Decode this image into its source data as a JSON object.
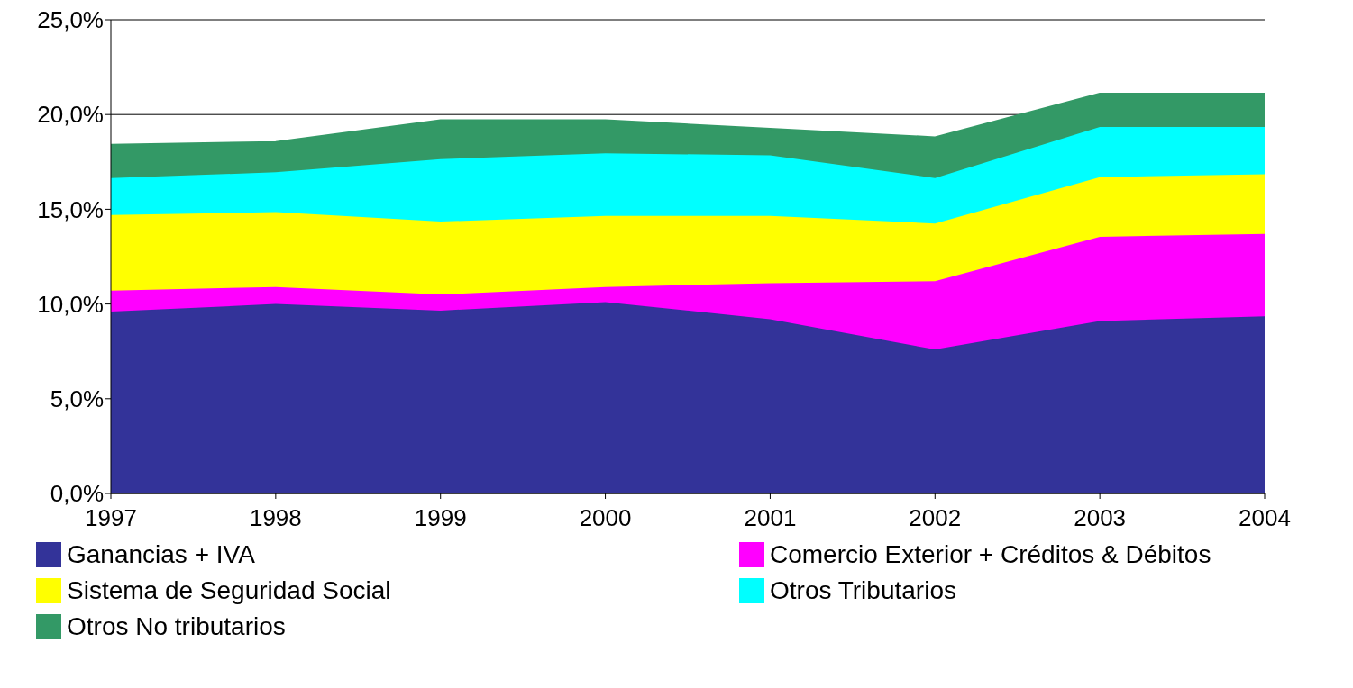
{
  "chart_data": {
    "type": "area",
    "stacked": true,
    "categories": [
      "1997",
      "1998",
      "1999",
      "2000",
      "2001",
      "2002",
      "2003",
      "2004"
    ],
    "series": [
      {
        "name": "Ganancias + IVA",
        "color": "#333399",
        "values": [
          9.6,
          10.0,
          9.65,
          10.1,
          9.2,
          7.6,
          9.1,
          9.35
        ]
      },
      {
        "name": "Comercio Exterior + Créditos & Débitos",
        "color": "#ff00ff",
        "values": [
          1.1,
          0.9,
          0.85,
          0.8,
          1.9,
          3.6,
          4.45,
          4.35
        ]
      },
      {
        "name": "Sistema de Seguridad Social",
        "color": "#ffff00",
        "values": [
          4.0,
          3.95,
          3.85,
          3.75,
          3.55,
          3.05,
          3.15,
          3.15
        ]
      },
      {
        "name": "Otros Tributarios",
        "color": "#00ffff",
        "values": [
          1.95,
          2.1,
          3.3,
          3.3,
          3.2,
          2.4,
          2.65,
          2.5
        ]
      },
      {
        "name": "Otros No tributarios",
        "color": "#339966",
        "values": [
          1.75,
          1.6,
          2.05,
          1.75,
          1.4,
          2.15,
          1.75,
          1.75
        ]
      }
    ],
    "ylim": [
      0,
      25
    ],
    "yticks": [
      {
        "value": 0,
        "label": "0,0%"
      },
      {
        "value": 5,
        "label": "5,0%"
      },
      {
        "value": 10,
        "label": "10,0%"
      },
      {
        "value": 15,
        "label": "15,0%"
      },
      {
        "value": 20,
        "label": "20,0%"
      },
      {
        "value": 25,
        "label": "25,0%"
      }
    ],
    "grid": "y",
    "legend": "bottom"
  }
}
